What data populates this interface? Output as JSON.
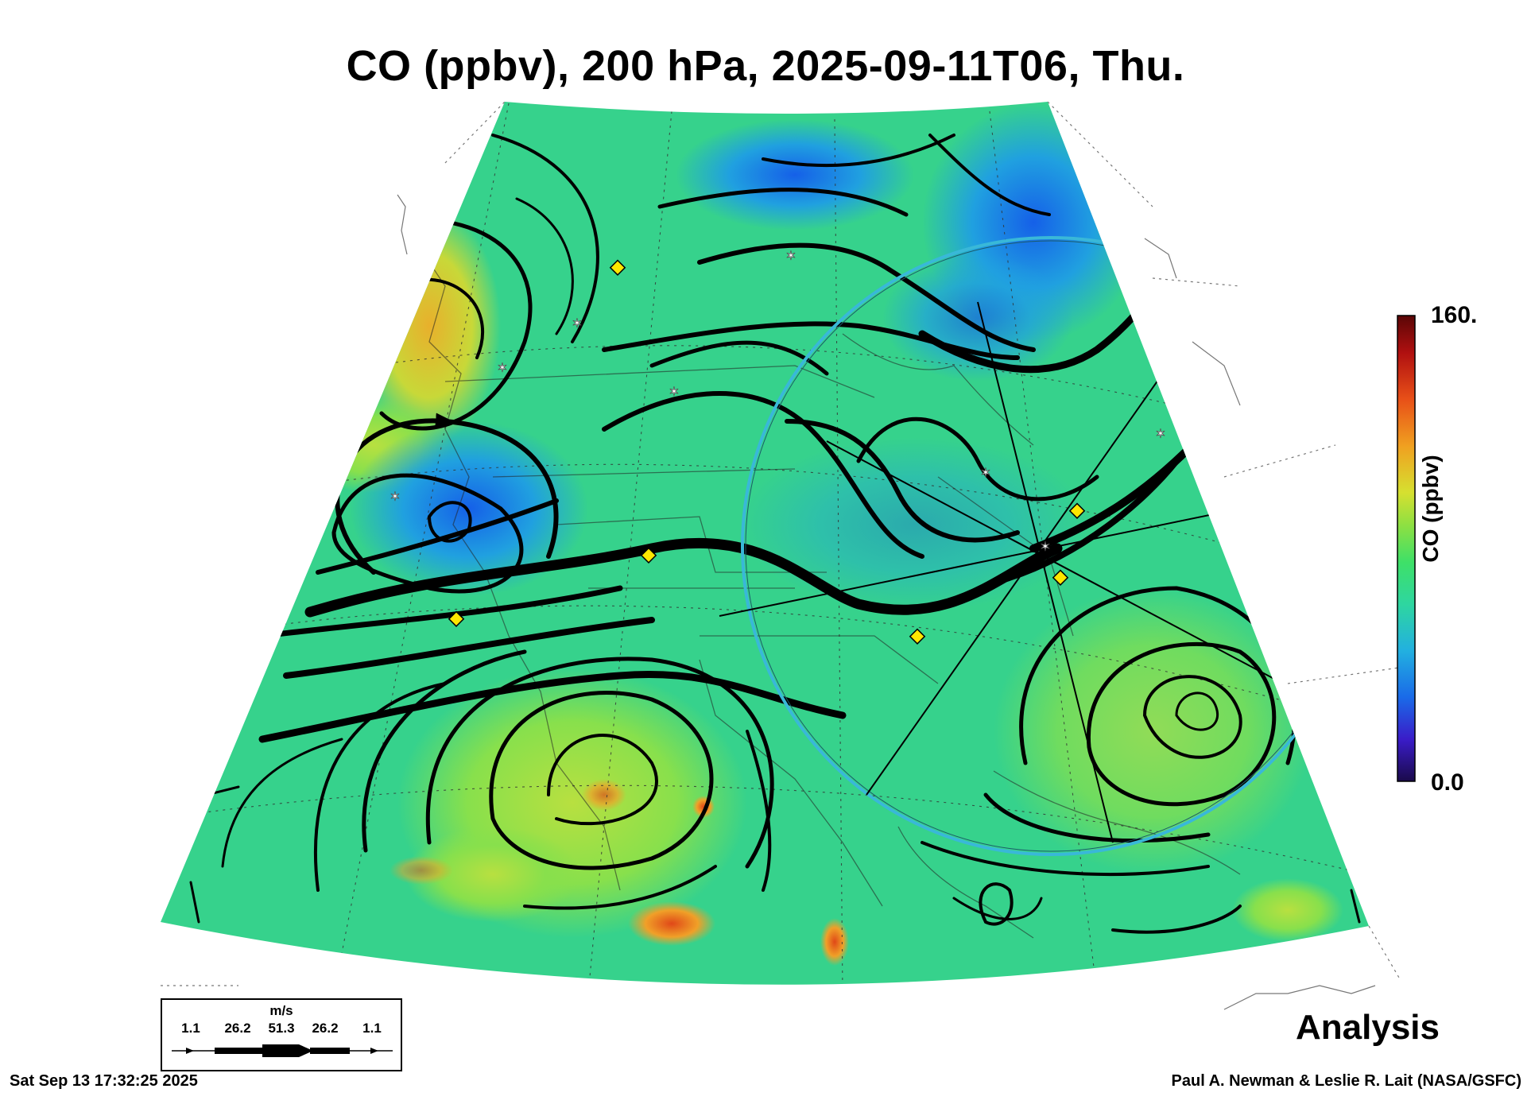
{
  "title": "CO (ppbv), 200 hPa, 2025-09-11T06, Thu.",
  "colorbar": {
    "label": "CO (ppbv)",
    "max_label": "160.",
    "min_label": "0.0",
    "min": 0.0,
    "max": 160.0,
    "colors": [
      "#1a0a4a",
      "#3a1cc8",
      "#1a6ae8",
      "#22b0e0",
      "#2ed6a0",
      "#3ee068",
      "#8ee042",
      "#d6e030",
      "#f0a020",
      "#e85018",
      "#b01010",
      "#5a0606"
    ]
  },
  "wind_legend": {
    "unit": "m/s",
    "values": [
      "1.1",
      "26.2",
      "51.3",
      "26.2",
      "1.1"
    ]
  },
  "stamp": "Analysis",
  "timestamp": "Sat Sep 13 17:32:25 2025",
  "credit": "Paul A. Newman & Leslie R. Lait (NASA/GSFC)",
  "theme": {
    "map_background": "#36d28c",
    "streamline": "#000000",
    "ring": "#39b8d8",
    "marker_diamond": "#ffe600",
    "marker_star": "#ffffff"
  }
}
